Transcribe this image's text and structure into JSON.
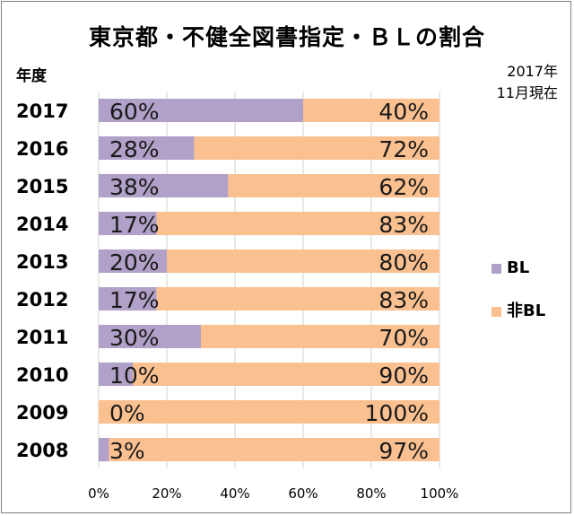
{
  "chart_data": {
    "type": "bar",
    "orientation": "horizontal",
    "stacked": true,
    "title": "東京都・不健全図書指定・ＢＬの割合",
    "year_header": "年度",
    "note_line1": "2017年",
    "note_line2": "11月現在",
    "categories": [
      "2017",
      "2016",
      "2015",
      "2014",
      "2013",
      "2012",
      "2011",
      "2010",
      "2009",
      "2008"
    ],
    "series": [
      {
        "name": "BL",
        "color": "#b1a0c7",
        "values": [
          60,
          28,
          38,
          17,
          20,
          17,
          30,
          10,
          0,
          3
        ]
      },
      {
        "name": "非BL",
        "color": "#fac090",
        "values": [
          40,
          72,
          62,
          83,
          80,
          83,
          70,
          90,
          100,
          97
        ]
      }
    ],
    "value_labels": {
      "BL": [
        "60%",
        "28%",
        "38%",
        "17%",
        "20%",
        "17%",
        "30%",
        "10%",
        "0%",
        "3%"
      ],
      "非BL": [
        "40%",
        "72%",
        "62%",
        "83%",
        "80%",
        "83%",
        "70%",
        "90%",
        "100%",
        "97%"
      ]
    },
    "xlim": [
      0,
      100
    ],
    "xticks": [
      "0%",
      "20%",
      "40%",
      "60%",
      "80%",
      "100%"
    ],
    "grid": true,
    "legend_position": "right"
  }
}
